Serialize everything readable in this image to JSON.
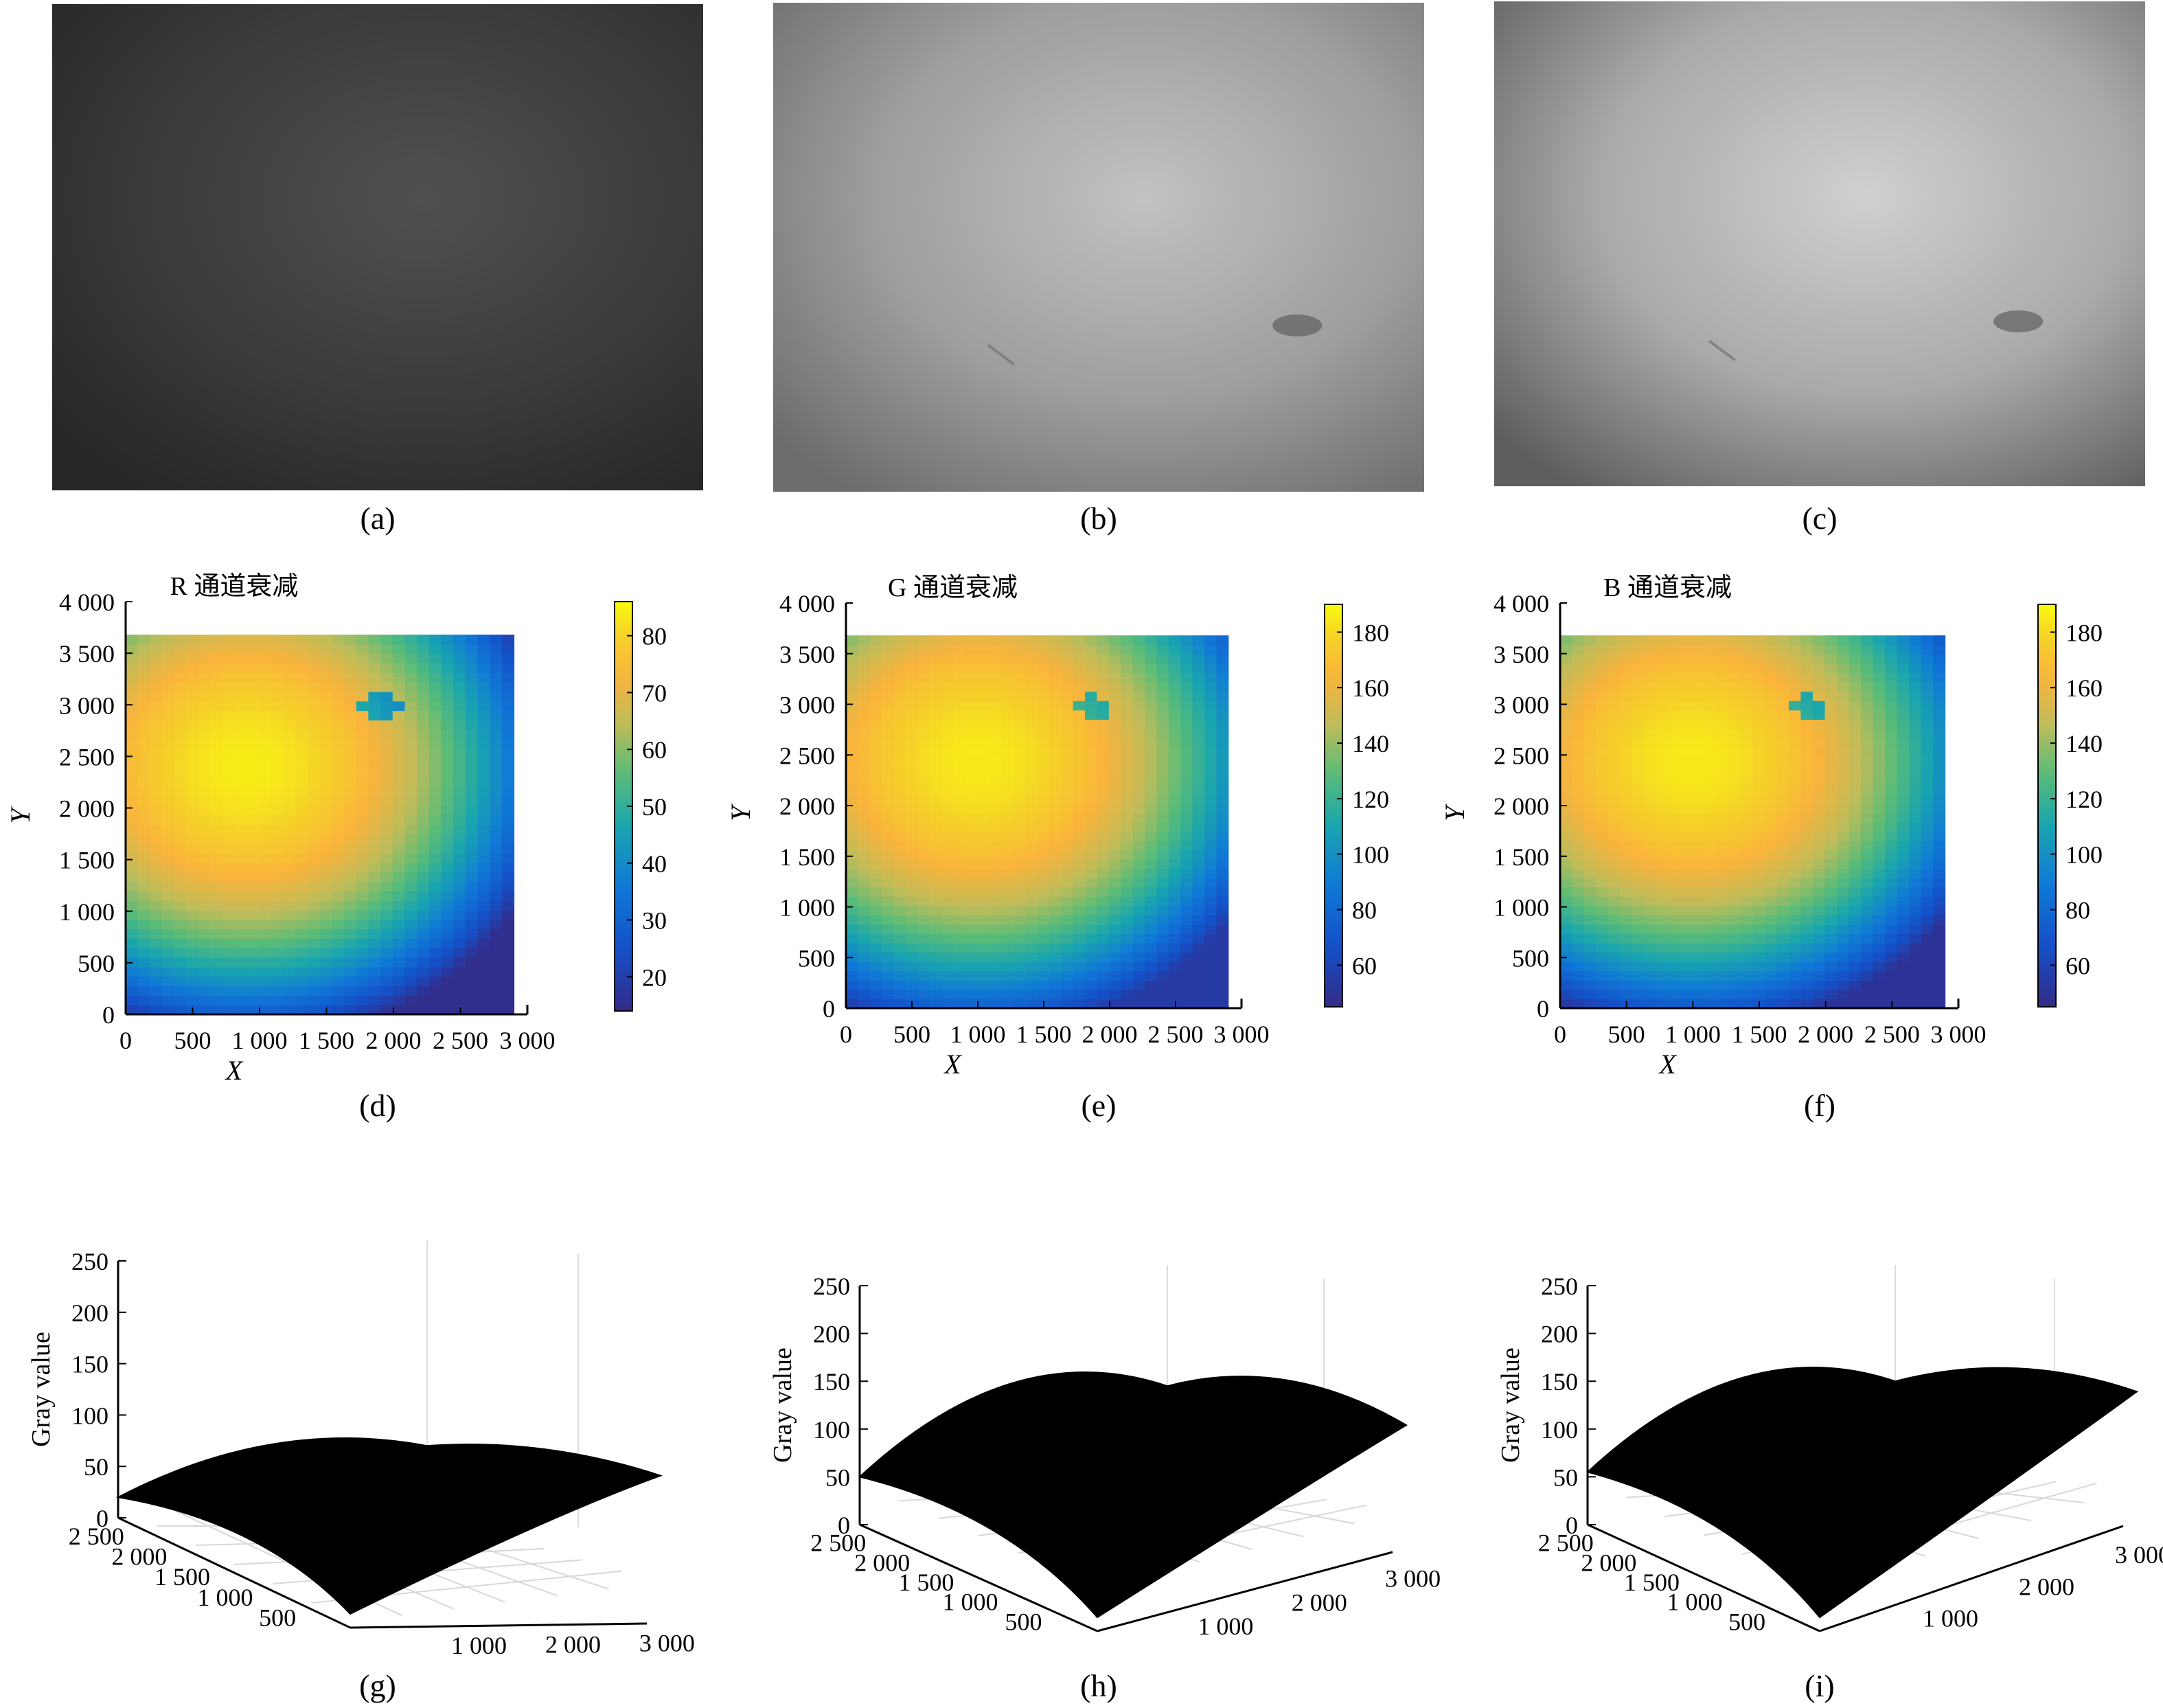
{
  "captions": [
    "(a)",
    "(b)",
    "(c)",
    "(d)",
    "(e)",
    "(f)",
    "(g)",
    "(h)",
    "(i)"
  ],
  "photos": [
    {
      "tone": "#3b3b3b",
      "center": "#505050",
      "edge": "#262626",
      "spot": false
    },
    {
      "tone": "#9e9e9e",
      "center": "#c2c2c2",
      "edge": "#6c6c6c",
      "spot": true
    },
    {
      "tone": "#a9a9a9",
      "center": "#d0d0d0",
      "edge": "#5e5e5e",
      "spot": true
    }
  ],
  "chart_data": [
    {
      "type": "heatmap",
      "title": "R 通道衰减",
      "xlabel": "X",
      "ylabel": "Y",
      "xlim": [
        0,
        3000
      ],
      "ylim": [
        0,
        4000
      ],
      "xticks": [
        0,
        500,
        1000,
        1500,
        2000,
        2500,
        3000
      ],
      "xtick_labels": [
        "0",
        "500",
        "1 000",
        "1 500",
        "2 000",
        "2 500",
        "3 000"
      ],
      "yticks": [
        0,
        500,
        1000,
        1500,
        2000,
        2500,
        3000,
        3500,
        4000
      ],
      "ytick_labels": [
        "0",
        "500",
        "1 000",
        "1 500",
        "2 000",
        "2 500",
        "3 000",
        "3 500",
        "4 000"
      ],
      "data_extent": {
        "x": [
          0,
          2900
        ],
        "y": [
          0,
          3680
        ]
      },
      "peak": {
        "x": 900,
        "y": 2400,
        "value": 84
      },
      "min_value": 15,
      "dark_spot": {
        "x": 1900,
        "y": 3000
      },
      "colorbar": {
        "min": 14,
        "max": 86,
        "ticks": [
          20,
          30,
          40,
          50,
          60,
          70,
          80
        ],
        "tick_labels": [
          "20",
          "30",
          "40",
          "50",
          "60",
          "70",
          "80"
        ]
      }
    },
    {
      "type": "heatmap",
      "title": "G 通道衰减",
      "xlabel": "X",
      "ylabel": "Y",
      "xlim": [
        0,
        3000
      ],
      "ylim": [
        0,
        4000
      ],
      "xticks": [
        0,
        500,
        1000,
        1500,
        2000,
        2500,
        3000
      ],
      "xtick_labels": [
        "0",
        "500",
        "1 000",
        "1 500",
        "2 000",
        "2 500",
        "3 000"
      ],
      "yticks": [
        0,
        500,
        1000,
        1500,
        2000,
        2500,
        3000,
        3500,
        4000
      ],
      "ytick_labels": [
        "0",
        "500",
        "1 000",
        "1 500",
        "2 000",
        "2 500",
        "3 000",
        "3 500",
        "4 000"
      ],
      "data_extent": {
        "x": [
          0,
          2900
        ],
        "y": [
          0,
          3680
        ]
      },
      "peak": {
        "x": 1000,
        "y": 2450,
        "value": 185
      },
      "min_value": 55,
      "dark_spot": {
        "x": 1900,
        "y": 2950
      },
      "colorbar": {
        "min": 45,
        "max": 190,
        "ticks": [
          60,
          80,
          100,
          120,
          140,
          160,
          180
        ],
        "tick_labels": [
          "60",
          "80",
          "100",
          "120",
          "140",
          "160",
          "180"
        ]
      }
    },
    {
      "type": "heatmap",
      "title": "B 通道衰减",
      "xlabel": "X",
      "ylabel": "Y",
      "xlim": [
        0,
        3000
      ],
      "ylim": [
        0,
        4000
      ],
      "xticks": [
        0,
        500,
        1000,
        1500,
        2000,
        2500,
        3000
      ],
      "xtick_labels": [
        "0",
        "500",
        "1 000",
        "1 500",
        "2 000",
        "2 500",
        "3 000"
      ],
      "yticks": [
        0,
        500,
        1000,
        1500,
        2000,
        2500,
        3000,
        3500,
        4000
      ],
      "ytick_labels": [
        "0",
        "500",
        "1 000",
        "1 500",
        "2 000",
        "2 500",
        "3 000",
        "3 500",
        "4 000"
      ],
      "data_extent": {
        "x": [
          0,
          2900
        ],
        "y": [
          0,
          3680
        ]
      },
      "peak": {
        "x": 1000,
        "y": 2450,
        "value": 185
      },
      "min_value": 50,
      "dark_spot": {
        "x": 1900,
        "y": 2950
      },
      "colorbar": {
        "min": 45,
        "max": 190,
        "ticks": [
          60,
          80,
          100,
          120,
          140,
          160,
          180
        ],
        "tick_labels": [
          "60",
          "80",
          "100",
          "120",
          "140",
          "160",
          "180"
        ]
      }
    },
    {
      "type": "area",
      "view": "3d-surface",
      "zlabel": "Gray value",
      "zlim": [
        0,
        250
      ],
      "zticks": [
        0,
        50,
        100,
        150,
        200,
        250
      ],
      "ztick_labels": [
        "0",
        "50",
        "100",
        "150",
        "200",
        "250"
      ],
      "ytick_labels": [
        "2 500",
        "2 000",
        "1 500",
        "1 000",
        "500"
      ],
      "xtick_labels": [
        "1 000",
        "2 000",
        "3 000"
      ],
      "corner_values": {
        "left": 20,
        "front": 0,
        "right": 35,
        "back": 70
      },
      "peak_value": 85
    },
    {
      "type": "area",
      "view": "3d-surface",
      "zlabel": "Gray value",
      "zlim": [
        0,
        250
      ],
      "zticks": [
        0,
        50,
        100,
        150,
        200,
        250
      ],
      "ztick_labels": [
        "0",
        "50",
        "100",
        "150",
        "200",
        "250"
      ],
      "ytick_labels": [
        "2 500",
        "2 000",
        "1 500",
        "1 000",
        "500"
      ],
      "xtick_labels": [
        "1 000",
        "2 000",
        "3 000"
      ],
      "corner_values": {
        "left": 50,
        "front": 0,
        "right": 75,
        "back": 145
      },
      "peak_value": 185
    },
    {
      "type": "area",
      "view": "3d-surface",
      "zlabel": "Gray value",
      "zlim": [
        0,
        250
      ],
      "zticks": [
        0,
        50,
        100,
        150,
        200,
        250
      ],
      "ztick_labels": [
        "0",
        "50",
        "100",
        "150",
        "200",
        "250"
      ],
      "ytick_labels": [
        "2 500",
        "2 000",
        "1 500",
        "1 000",
        "500"
      ],
      "xtick_labels": [
        "1 000",
        "2 000",
        "3 000"
      ],
      "corner_values": {
        "left": 55,
        "front": 0,
        "right": 100,
        "back": 150
      },
      "peak_value": 190
    }
  ]
}
